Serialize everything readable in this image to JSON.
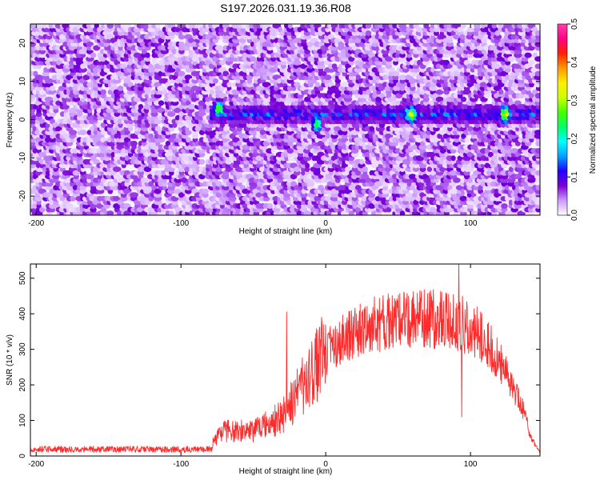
{
  "title": "S197.2026.031.19.36.R08",
  "chart_data": [
    {
      "type": "heatmap",
      "name": "spectrogram",
      "xlabel": "Height of straight line (km)",
      "ylabel": "Frequency (Hz)",
      "xlim": [
        -204,
        148
      ],
      "ylim": [
        -25,
        25
      ],
      "xticks": [
        -200,
        -100,
        0,
        100
      ],
      "xtick_labels": [
        "-200",
        "-100",
        "0",
        "100"
      ],
      "yticks": [
        -20,
        -10,
        0,
        10,
        20
      ],
      "ytick_labels": [
        "-20",
        "-10",
        "0",
        "10",
        "20"
      ],
      "colorbar": {
        "label": "Normalized spectral amplitude",
        "range": [
          0.0,
          0.5
        ],
        "ticks": [
          0.0,
          0.1,
          0.2,
          0.3,
          0.4,
          0.5
        ],
        "tick_labels": [
          "0.0",
          "0.1",
          "0.2",
          "0.3",
          "0.4",
          "0.5"
        ],
        "colors": [
          "#ffffff",
          "#cc99ff",
          "#7b00d4",
          "#2200ff",
          "#00a0ff",
          "#00ffff",
          "#00ff66",
          "#44ff00",
          "#ccff00",
          "#ffee00",
          "#ff9900",
          "#ff2200",
          "#ff0088",
          "#ff3fa8"
        ]
      },
      "signal_band": {
        "x_start": -80,
        "x_end": 148,
        "frequency_hz": 1.5
      },
      "hotspots": [
        {
          "x": -73,
          "y": 3,
          "v": 0.28
        },
        {
          "x": -5,
          "y": -1,
          "v": 0.26
        },
        {
          "x": 60,
          "y": 1.5,
          "v": 0.33
        },
        {
          "x": 125,
          "y": 1.5,
          "v": 0.35
        }
      ]
    },
    {
      "type": "line",
      "name": "snr",
      "xlabel": "Height of straight line (km)",
      "ylabel": "SNR (10 * v/v)",
      "xlim": [
        -204,
        148
      ],
      "ylim": [
        0,
        540
      ],
      "xticks": [
        -200,
        -100,
        0,
        100
      ],
      "xtick_labels": [
        "-200",
        "-100",
        "0",
        "100"
      ],
      "yticks": [
        0,
        100,
        200,
        300,
        400,
        500
      ],
      "ytick_labels": [
        "0",
        "100",
        "200",
        "300",
        "400",
        "500"
      ],
      "color": "#ff2a2a",
      "envelope": [
        [
          -204,
          20
        ],
        [
          -150,
          20
        ],
        [
          -85,
          22
        ],
        [
          -78,
          40
        ],
        [
          -70,
          70
        ],
        [
          -50,
          70
        ],
        [
          -40,
          90
        ],
        [
          -30,
          110
        ],
        [
          -20,
          170
        ],
        [
          -10,
          230
        ],
        [
          0,
          290
        ],
        [
          15,
          335
        ],
        [
          30,
          370
        ],
        [
          50,
          380
        ],
        [
          70,
          385
        ],
        [
          90,
          380
        ],
        [
          105,
          350
        ],
        [
          115,
          300
        ],
        [
          125,
          230
        ],
        [
          135,
          150
        ],
        [
          142,
          50
        ],
        [
          148,
          10
        ]
      ],
      "spikes": [
        {
          "x": -27,
          "y": 405
        },
        {
          "x": 92,
          "y": 540
        },
        {
          "x": 94,
          "y": 110
        }
      ]
    }
  ]
}
